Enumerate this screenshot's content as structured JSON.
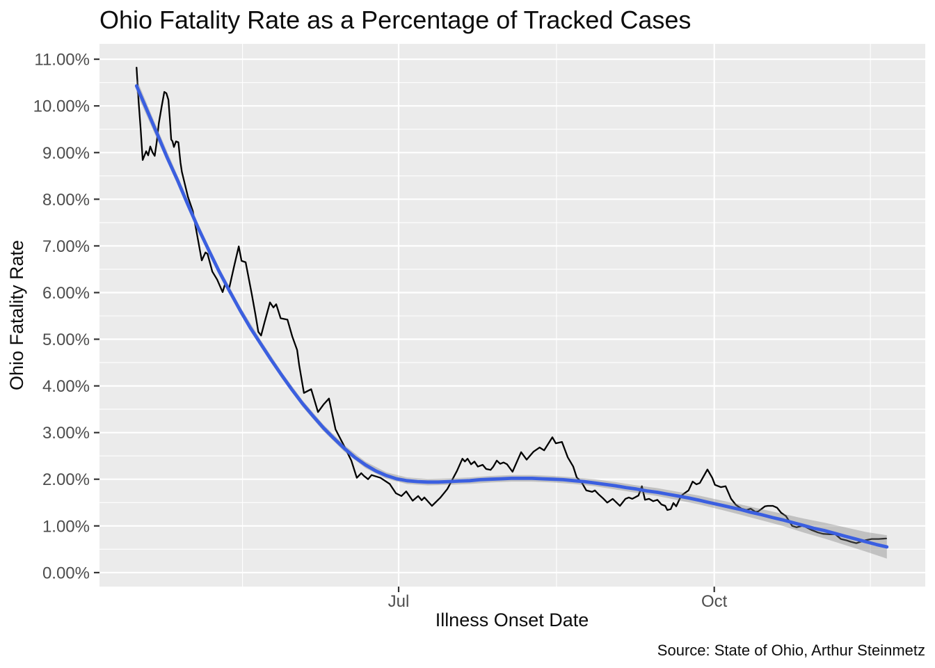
{
  "title": "Ohio Fatality Rate as a Percentage of Tracked Cases",
  "caption": "Source: State of Ohio, Arthur Steinmetz",
  "x_axis": {
    "label": "Illness Onset Date",
    "unit": "days since 2020-04-01",
    "major_ticks": [
      {
        "day": 91,
        "label": "Jul"
      },
      {
        "day": 183,
        "label": "Oct"
      }
    ],
    "minor_tick_days": [
      45.5,
      137,
      228.5
    ]
  },
  "y_axis": {
    "label": "Ohio Fatality Rate",
    "major_ticks": [
      {
        "value": 0,
        "label": "0.00%"
      },
      {
        "value": 1,
        "label": "1.00%"
      },
      {
        "value": 2,
        "label": "2.00%"
      },
      {
        "value": 3,
        "label": "3.00%"
      },
      {
        "value": 4,
        "label": "4.00%"
      },
      {
        "value": 5,
        "label": "5.00%"
      },
      {
        "value": 6,
        "label": "6.00%"
      },
      {
        "value": 7,
        "label": "7.00%"
      },
      {
        "value": 8,
        "label": "8.00%"
      },
      {
        "value": 9,
        "label": "9.00%"
      },
      {
        "value": 10,
        "label": "10.00%"
      },
      {
        "value": 11,
        "label": "11.00%"
      }
    ],
    "minor_tick_values": [
      0.5,
      1.5,
      2.5,
      3.5,
      4.5,
      5.5,
      6.5,
      7.5,
      8.5,
      9.5,
      10.5
    ]
  },
  "colors": {
    "panel_bg": "#EBEBEB",
    "grid": "#FFFFFF",
    "raw_line": "#000000",
    "smooth_line": "#3B5FE0",
    "band_fill": "#7F7F7F",
    "band_opacity": 0.38,
    "axis_text": "#4D4D4D",
    "tick": "#333333",
    "text": "#0D0D0D"
  },
  "chart_data": {
    "type": "line",
    "title": "Ohio Fatality Rate as a Percentage of Tracked Cases",
    "xlabel": "Illness Onset Date",
    "ylabel": "Ohio Fatality Rate",
    "x_unit": "days since 2020-04-01 (Jul 1 = 91, Oct 1 = 183)",
    "y_unit": "percent",
    "xlim": [
      3.8,
      244.5
    ],
    "ylim": [
      -0.3,
      11.33
    ],
    "grid": "white major and minor gridlines on gray panel",
    "legend": "none",
    "series": [
      {
        "name": "Daily fatality rate (raw)",
        "color": "#000000",
        "points": [
          [
            14.6,
            10.82
          ],
          [
            15.2,
            10.1
          ],
          [
            15.8,
            9.5
          ],
          [
            16.4,
            8.84
          ],
          [
            17.4,
            9.03
          ],
          [
            18.0,
            8.94
          ],
          [
            18.6,
            9.13
          ],
          [
            19.3,
            9.0
          ],
          [
            19.9,
            8.93
          ],
          [
            20.5,
            9.24
          ],
          [
            21.1,
            9.63
          ],
          [
            21.9,
            9.98
          ],
          [
            22.7,
            10.3
          ],
          [
            23.3,
            10.27
          ],
          [
            23.9,
            10.13
          ],
          [
            24.3,
            9.73
          ],
          [
            24.7,
            9.28
          ],
          [
            25.1,
            9.24
          ],
          [
            25.5,
            9.12
          ],
          [
            26.1,
            9.24
          ],
          [
            26.8,
            9.22
          ],
          [
            27.4,
            8.79
          ],
          [
            27.8,
            8.59
          ],
          [
            28.6,
            8.35
          ],
          [
            29.6,
            8.05
          ],
          [
            31.0,
            7.75
          ],
          [
            31.6,
            7.5
          ],
          [
            32.6,
            7.1
          ],
          [
            33.6,
            6.69
          ],
          [
            34.7,
            6.86
          ],
          [
            35.3,
            6.83
          ],
          [
            36.7,
            6.45
          ],
          [
            38.1,
            6.28
          ],
          [
            39.7,
            6.01
          ],
          [
            40.5,
            6.21
          ],
          [
            41.6,
            6.09
          ],
          [
            43.0,
            6.55
          ],
          [
            44.4,
            6.99
          ],
          [
            45.2,
            6.68
          ],
          [
            46.4,
            6.65
          ],
          [
            48.2,
            5.96
          ],
          [
            49.3,
            5.51
          ],
          [
            50.1,
            5.16
          ],
          [
            50.9,
            5.08
          ],
          [
            51.9,
            5.36
          ],
          [
            53.5,
            5.79
          ],
          [
            54.5,
            5.68
          ],
          [
            55.3,
            5.75
          ],
          [
            56.6,
            5.45
          ],
          [
            58.6,
            5.42
          ],
          [
            60.0,
            5.06
          ],
          [
            61.4,
            4.77
          ],
          [
            62.0,
            4.45
          ],
          [
            63.4,
            3.85
          ],
          [
            65.5,
            3.93
          ],
          [
            67.5,
            3.44
          ],
          [
            69.1,
            3.6
          ],
          [
            70.7,
            3.73
          ],
          [
            72.6,
            3.07
          ],
          [
            75.0,
            2.73
          ],
          [
            77.2,
            2.4
          ],
          [
            78.8,
            2.03
          ],
          [
            80.1,
            2.13
          ],
          [
            80.9,
            2.07
          ],
          [
            82.1,
            2.0
          ],
          [
            83.1,
            2.09
          ],
          [
            85.7,
            2.03
          ],
          [
            88.4,
            1.9
          ],
          [
            90.2,
            1.7
          ],
          [
            91.8,
            1.64
          ],
          [
            93.2,
            1.74
          ],
          [
            95.1,
            1.54
          ],
          [
            96.7,
            1.64
          ],
          [
            97.7,
            1.55
          ],
          [
            98.5,
            1.61
          ],
          [
            100.7,
            1.43
          ],
          [
            103.2,
            1.61
          ],
          [
            105.2,
            1.79
          ],
          [
            108.0,
            2.18
          ],
          [
            109.6,
            2.44
          ],
          [
            110.3,
            2.38
          ],
          [
            111.1,
            2.44
          ],
          [
            112.1,
            2.32
          ],
          [
            113.1,
            2.38
          ],
          [
            114.1,
            2.27
          ],
          [
            115.5,
            2.31
          ],
          [
            116.5,
            2.22
          ],
          [
            117.8,
            2.2
          ],
          [
            118.6,
            2.27
          ],
          [
            119.6,
            2.4
          ],
          [
            120.6,
            2.33
          ],
          [
            121.6,
            2.36
          ],
          [
            122.6,
            2.32
          ],
          [
            124.2,
            2.16
          ],
          [
            126.7,
            2.58
          ],
          [
            128.3,
            2.42
          ],
          [
            130.3,
            2.59
          ],
          [
            132.1,
            2.68
          ],
          [
            133.4,
            2.62
          ],
          [
            135.8,
            2.9
          ],
          [
            136.8,
            2.77
          ],
          [
            138.6,
            2.8
          ],
          [
            140.3,
            2.47
          ],
          [
            141.9,
            2.27
          ],
          [
            142.9,
            2.04
          ],
          [
            144.3,
            1.94
          ],
          [
            145.7,
            1.76
          ],
          [
            147.4,
            1.73
          ],
          [
            148.2,
            1.76
          ],
          [
            149.4,
            1.67
          ],
          [
            150.6,
            1.59
          ],
          [
            151.8,
            1.5
          ],
          [
            153.4,
            1.58
          ],
          [
            155.5,
            1.43
          ],
          [
            157.1,
            1.58
          ],
          [
            158.1,
            1.61
          ],
          [
            159.1,
            1.58
          ],
          [
            160.1,
            1.62
          ],
          [
            160.9,
            1.65
          ],
          [
            161.9,
            1.85
          ],
          [
            162.8,
            1.56
          ],
          [
            164.0,
            1.58
          ],
          [
            165.2,
            1.53
          ],
          [
            166.4,
            1.56
          ],
          [
            167.6,
            1.46
          ],
          [
            168.7,
            1.43
          ],
          [
            169.3,
            1.34
          ],
          [
            170.3,
            1.36
          ],
          [
            171.1,
            1.49
          ],
          [
            171.9,
            1.42
          ],
          [
            173.3,
            1.64
          ],
          [
            174.3,
            1.7
          ],
          [
            175.5,
            1.76
          ],
          [
            176.7,
            1.95
          ],
          [
            177.8,
            1.89
          ],
          [
            178.8,
            1.92
          ],
          [
            181.0,
            2.21
          ],
          [
            182.4,
            2.03
          ],
          [
            183.2,
            1.88
          ],
          [
            184.9,
            1.83
          ],
          [
            186.3,
            1.85
          ],
          [
            187.9,
            1.58
          ],
          [
            189.3,
            1.45
          ],
          [
            190.9,
            1.37
          ],
          [
            192.4,
            1.34
          ],
          [
            193.6,
            1.37
          ],
          [
            195.0,
            1.3
          ],
          [
            195.8,
            1.31
          ],
          [
            197.8,
            1.42
          ],
          [
            198.6,
            1.43
          ],
          [
            200.1,
            1.43
          ],
          [
            201.3,
            1.39
          ],
          [
            202.5,
            1.28
          ],
          [
            203.9,
            1.21
          ],
          [
            205.7,
            1.0
          ],
          [
            207.0,
            0.97
          ],
          [
            208.6,
            1.0
          ],
          [
            209.6,
            0.98
          ],
          [
            211.4,
            0.91
          ],
          [
            213.2,
            0.86
          ],
          [
            214.7,
            0.83
          ],
          [
            216.7,
            0.82
          ],
          [
            218.3,
            0.82
          ],
          [
            219.9,
            0.72
          ],
          [
            221.6,
            0.69
          ],
          [
            222.8,
            0.66
          ],
          [
            224.4,
            0.63
          ],
          [
            226.8,
            0.69
          ],
          [
            228.9,
            0.72
          ],
          [
            230.9,
            0.72
          ],
          [
            233.1,
            0.73
          ]
        ]
      },
      {
        "name": "LOESS smooth trend",
        "color": "#3B5FE0",
        "points": [
          [
            14.6,
            10.43
          ],
          [
            17.4,
            9.95
          ],
          [
            20.5,
            9.42
          ],
          [
            23.5,
            8.9
          ],
          [
            26.6,
            8.4
          ],
          [
            29.6,
            7.88
          ],
          [
            32.6,
            7.38
          ],
          [
            35.7,
            6.9
          ],
          [
            38.7,
            6.45
          ],
          [
            41.8,
            6.02
          ],
          [
            44.8,
            5.62
          ],
          [
            47.8,
            5.24
          ],
          [
            50.9,
            4.89
          ],
          [
            53.9,
            4.55
          ],
          [
            57.0,
            4.22
          ],
          [
            60.0,
            3.91
          ],
          [
            63.0,
            3.62
          ],
          [
            66.1,
            3.35
          ],
          [
            69.1,
            3.1
          ],
          [
            72.2,
            2.87
          ],
          [
            75.2,
            2.66
          ],
          [
            78.2,
            2.47
          ],
          [
            81.3,
            2.31
          ],
          [
            84.3,
            2.18
          ],
          [
            87.4,
            2.08
          ],
          [
            90.4,
            2.01
          ],
          [
            93.4,
            1.97
          ],
          [
            96.5,
            1.95
          ],
          [
            99.5,
            1.94
          ],
          [
            102.6,
            1.94
          ],
          [
            105.6,
            1.95
          ],
          [
            108.6,
            1.96
          ],
          [
            111.7,
            1.97
          ],
          [
            114.7,
            1.99
          ],
          [
            117.8,
            2.0
          ],
          [
            120.8,
            2.01
          ],
          [
            123.8,
            2.02
          ],
          [
            126.9,
            2.02
          ],
          [
            129.9,
            2.02
          ],
          [
            133.0,
            2.01
          ],
          [
            136.0,
            2.0
          ],
          [
            139.0,
            1.99
          ],
          [
            142.1,
            1.97
          ],
          [
            145.1,
            1.95
          ],
          [
            148.2,
            1.92
          ],
          [
            151.2,
            1.89
          ],
          [
            154.2,
            1.86
          ],
          [
            157.3,
            1.82
          ],
          [
            160.3,
            1.79
          ],
          [
            163.3,
            1.75
          ],
          [
            166.4,
            1.72
          ],
          [
            169.4,
            1.68
          ],
          [
            172.5,
            1.64
          ],
          [
            175.5,
            1.6
          ],
          [
            178.6,
            1.55
          ],
          [
            181.6,
            1.5
          ],
          [
            184.7,
            1.45
          ],
          [
            187.7,
            1.4
          ],
          [
            190.7,
            1.35
          ],
          [
            193.8,
            1.29
          ],
          [
            196.8,
            1.24
          ],
          [
            199.9,
            1.18
          ],
          [
            202.9,
            1.13
          ],
          [
            205.9,
            1.07
          ],
          [
            209.0,
            1.01
          ],
          [
            212.0,
            0.95
          ],
          [
            215.1,
            0.9
          ],
          [
            218.1,
            0.84
          ],
          [
            221.1,
            0.78
          ],
          [
            224.2,
            0.72
          ],
          [
            227.2,
            0.66
          ],
          [
            230.3,
            0.6
          ],
          [
            233.3,
            0.55
          ]
        ]
      }
    ],
    "band": {
      "name": "smooth confidence band",
      "points": [
        [
          14.6,
          10.28,
          10.58
        ],
        [
          20.5,
          9.3,
          9.54
        ],
        [
          26.6,
          8.3,
          8.5
        ],
        [
          32.6,
          7.29,
          7.47
        ],
        [
          38.7,
          6.37,
          6.53
        ],
        [
          44.8,
          5.54,
          5.7
        ],
        [
          50.9,
          4.82,
          4.97
        ],
        [
          57.0,
          4.15,
          4.29
        ],
        [
          63.0,
          3.55,
          3.69
        ],
        [
          69.1,
          3.03,
          3.17
        ],
        [
          75.2,
          2.59,
          2.73
        ],
        [
          81.3,
          2.24,
          2.38
        ],
        [
          87.4,
          2.01,
          2.15
        ],
        [
          93.4,
          1.9,
          2.04
        ],
        [
          99.5,
          1.87,
          2.01
        ],
        [
          105.6,
          1.88,
          2.02
        ],
        [
          111.7,
          1.9,
          2.04
        ],
        [
          117.8,
          1.93,
          2.07
        ],
        [
          123.8,
          1.95,
          2.09
        ],
        [
          129.9,
          1.95,
          2.09
        ],
        [
          136.0,
          1.93,
          2.07
        ],
        [
          142.1,
          1.9,
          2.04
        ],
        [
          148.2,
          1.85,
          2.0
        ],
        [
          154.2,
          1.78,
          1.94
        ],
        [
          160.3,
          1.71,
          1.87
        ],
        [
          166.4,
          1.64,
          1.81
        ],
        [
          172.5,
          1.55,
          1.73
        ],
        [
          178.6,
          1.46,
          1.65
        ],
        [
          184.7,
          1.35,
          1.55
        ],
        [
          190.7,
          1.24,
          1.46
        ],
        [
          196.8,
          1.12,
          1.36
        ],
        [
          202.9,
          1.0,
          1.26
        ],
        [
          209.0,
          0.86,
          1.16
        ],
        [
          215.1,
          0.73,
          1.07
        ],
        [
          221.1,
          0.59,
          0.97
        ],
        [
          227.2,
          0.45,
          0.87
        ],
        [
          233.3,
          0.3,
          0.8
        ]
      ]
    }
  }
}
